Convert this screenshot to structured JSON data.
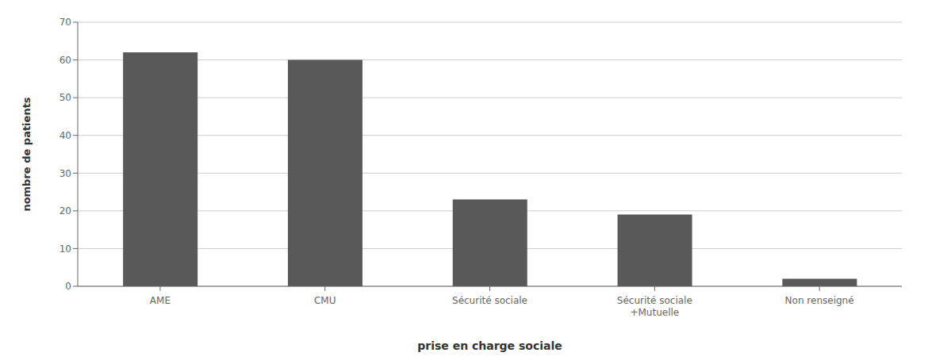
{
  "chart_data": {
    "type": "bar",
    "categories": [
      "AME",
      "CMU",
      "Sécurité sociale",
      "Sécurité sociale\n+Mutuelle",
      "Non renseigné"
    ],
    "values": [
      62,
      60,
      23,
      19,
      2
    ],
    "color": "#595959",
    "xlabel": "prise en charge sociale",
    "ylabel": "nombre de patients",
    "ylim": [
      0,
      70
    ],
    "yticks": [
      0,
      10,
      20,
      30,
      40,
      50,
      60,
      70
    ],
    "grid": true
  }
}
